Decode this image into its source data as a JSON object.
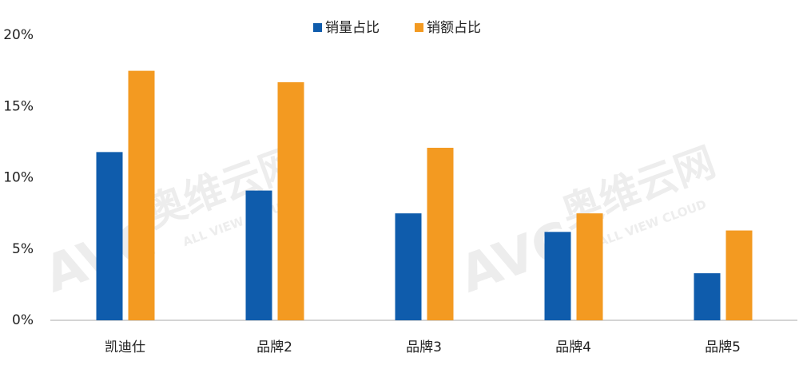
{
  "chart_data": {
    "type": "bar",
    "categories": [
      "凯迪仕",
      "品牌2",
      "品牌3",
      "品牌4",
      "品牌5"
    ],
    "series": [
      {
        "name": "销量占比",
        "color": "#0f5cac",
        "values": [
          11.8,
          9.1,
          7.5,
          6.2,
          3.3
        ]
      },
      {
        "name": "销额占比",
        "color": "#f39a21",
        "values": [
          17.5,
          16.7,
          12.1,
          7.5,
          6.3
        ]
      }
    ],
    "ylim": [
      0,
      20
    ],
    "yticks": [
      {
        "value": 0,
        "label": "0%"
      },
      {
        "value": 5,
        "label": "5%"
      },
      {
        "value": 10,
        "label": "10%"
      },
      {
        "value": 15,
        "label": "15%"
      },
      {
        "value": 20,
        "label": "20%"
      }
    ],
    "grid": false,
    "legend": "top",
    "watermark": {
      "logo": "AVC",
      "name": "奥维云网",
      "subtitle": "ALL VIEW CLOUD"
    }
  }
}
